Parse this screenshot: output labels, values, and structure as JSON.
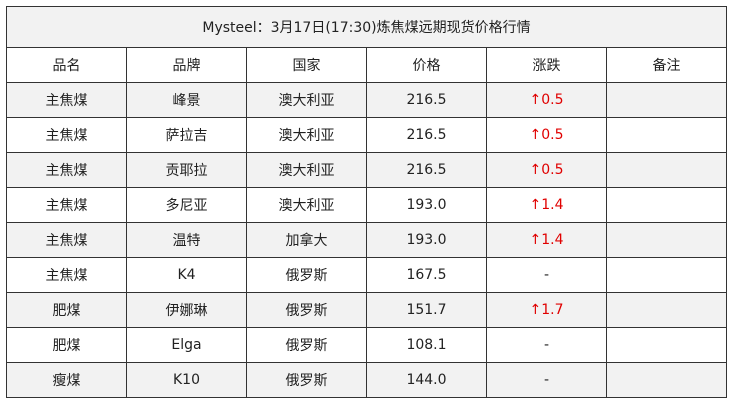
{
  "title": "Mysteel：3月17日(17:30)炼焦煤远期现货价格行情",
  "headers": [
    "品名",
    "品牌",
    "国家",
    "价格",
    "涨跌",
    "备注"
  ],
  "colors": {
    "up": "#e00000",
    "row_alt": "#f2f2f2"
  },
  "rows": [
    {
      "name": "主焦煤",
      "brand": "峰景",
      "country": "澳大利亚",
      "price": "216.5",
      "change": "↑0.5",
      "note": ""
    },
    {
      "name": "主焦煤",
      "brand": "萨拉吉",
      "country": "澳大利亚",
      "price": "216.5",
      "change": "↑0.5",
      "note": ""
    },
    {
      "name": "主焦煤",
      "brand": "贡耶拉",
      "country": "澳大利亚",
      "price": "216.5",
      "change": "↑0.5",
      "note": ""
    },
    {
      "name": "主焦煤",
      "brand": "多尼亚",
      "country": "澳大利亚",
      "price": "193.0",
      "change": "↑1.4",
      "note": ""
    },
    {
      "name": "主焦煤",
      "brand": "温特",
      "country": "加拿大",
      "price": "193.0",
      "change": "↑1.4",
      "note": ""
    },
    {
      "name": "主焦煤",
      "brand": "K4",
      "country": "俄罗斯",
      "price": "167.5",
      "change": "-",
      "note": ""
    },
    {
      "name": "肥煤",
      "brand": "伊娜琳",
      "country": "俄罗斯",
      "price": "151.7",
      "change": "↑1.7",
      "note": ""
    },
    {
      "name": "肥煤",
      "brand": "Elga",
      "country": "俄罗斯",
      "price": "108.1",
      "change": "-",
      "note": ""
    },
    {
      "name": "瘦煤",
      "brand": "K10",
      "country": "俄罗斯",
      "price": "144.0",
      "change": "-",
      "note": ""
    }
  ]
}
